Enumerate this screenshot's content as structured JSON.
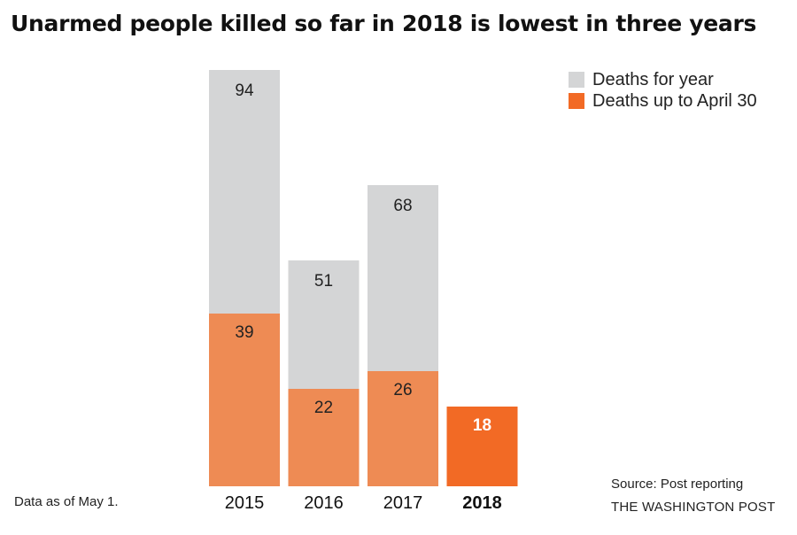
{
  "colors": {
    "total": "#d4d5d6",
    "partial": "#ee8b54",
    "highlight": "#f26a25",
    "text": "#222222",
    "highlight_label": "#ffffff"
  },
  "chart_data": {
    "type": "bar",
    "title": "Unarmed people killed so far in 2018 is lowest in three years",
    "categories": [
      "2015",
      "2016",
      "2017",
      "2018"
    ],
    "highlight_category": "2018",
    "series": [
      {
        "name": "Deaths for year",
        "values": [
          94,
          51,
          68,
          null
        ]
      },
      {
        "name": "Deaths up to April 30",
        "values": [
          39,
          22,
          26,
          18
        ]
      }
    ],
    "xlabel": "",
    "ylabel": "",
    "ylim": [
      0,
      100
    ],
    "grid": false,
    "legend_position": "top-right"
  },
  "footer": {
    "note": "Data as of May 1.",
    "source": "Source: Post reporting",
    "credit": "THE WASHINGTON POST"
  }
}
